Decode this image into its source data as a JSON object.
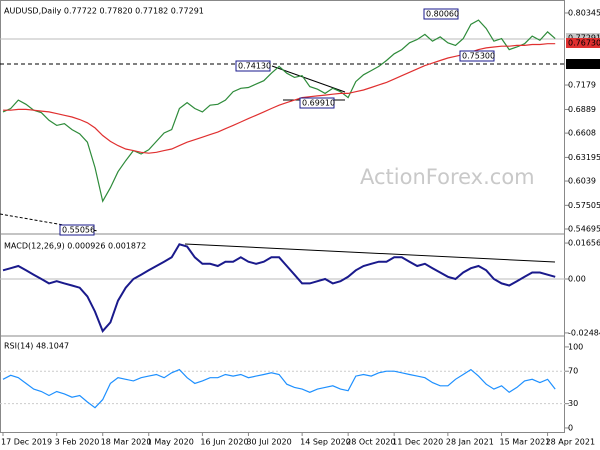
{
  "x_axis": {
    "ticks": [
      {
        "value": 0,
        "label": "17 Dec 2019"
      },
      {
        "value": 7,
        "label": "3 Feb 2020"
      },
      {
        "value": 13,
        "label": "18 Mar 2020"
      },
      {
        "value": 19,
        "label": "1 May 2020"
      },
      {
        "value": 26,
        "label": "16 Jun 2020"
      },
      {
        "value": 32,
        "label": "30 Jul 2020"
      },
      {
        "value": 39,
        "label": "14 Sep 2020"
      },
      {
        "value": 45,
        "label": "28 Oct 2020"
      },
      {
        "value": 51,
        "label": "11 Dec 2020"
      },
      {
        "value": 58,
        "label": "28 Jan 2021"
      },
      {
        "value": 65,
        "label": "15 Mar 2021"
      },
      {
        "value": 71,
        "label": "28 Apr 2021"
      }
    ]
  },
  "watermark": "ActionForex.com",
  "chart_data": [
    {
      "type": "line",
      "title": "AUDUSD,Daily  0.77722 0.77820 0.77182 0.77291",
      "ylim": [
        0.5434,
        0.8153
      ],
      "yticks": [
        0.80345,
        0.7179,
        0.6889,
        0.6608,
        0.63195,
        0.6039,
        0.57505,
        0.54695
      ],
      "series": [
        {
          "color": "#2e8b3a",
          "values": [
            0.686,
            0.69,
            0.7,
            0.695,
            0.688,
            0.685,
            0.676,
            0.67,
            0.672,
            0.665,
            0.66,
            0.65,
            0.62,
            0.58,
            0.596,
            0.615,
            0.628,
            0.64,
            0.636,
            0.641,
            0.651,
            0.661,
            0.665,
            0.69,
            0.697,
            0.69,
            0.686,
            0.694,
            0.695,
            0.7,
            0.71,
            0.714,
            0.715,
            0.719,
            0.723,
            0.732,
            0.74,
            0.732,
            0.727,
            0.729,
            0.716,
            0.713,
            0.708,
            0.714,
            0.71,
            0.703,
            0.722,
            0.73,
            0.735,
            0.74,
            0.747,
            0.755,
            0.76,
            0.768,
            0.772,
            0.778,
            0.77,
            0.775,
            0.768,
            0.765,
            0.773,
            0.79,
            0.795,
            0.785,
            0.77,
            0.773,
            0.76,
            0.763,
            0.767,
            0.776,
            0.771,
            0.781,
            0.773
          ]
        },
        {
          "color": "#e03030",
          "values": [
            0.688,
            0.688,
            0.689,
            0.689,
            0.688,
            0.687,
            0.686,
            0.684,
            0.682,
            0.68,
            0.677,
            0.673,
            0.667,
            0.658,
            0.651,
            0.646,
            0.642,
            0.64,
            0.638,
            0.637,
            0.638,
            0.64,
            0.642,
            0.646,
            0.65,
            0.653,
            0.656,
            0.659,
            0.662,
            0.666,
            0.67,
            0.674,
            0.678,
            0.682,
            0.686,
            0.69,
            0.694,
            0.697,
            0.7,
            0.703,
            0.704,
            0.705,
            0.706,
            0.707,
            0.708,
            0.708,
            0.71,
            0.712,
            0.715,
            0.718,
            0.721,
            0.725,
            0.729,
            0.733,
            0.737,
            0.741,
            0.744,
            0.747,
            0.75,
            0.752,
            0.754,
            0.757,
            0.76,
            0.762,
            0.763,
            0.764,
            0.764,
            0.765,
            0.765,
            0.766,
            0.766,
            0.767,
            0.767
          ]
        }
      ],
      "annotations": [
        "0.80060",
        "0.74130",
        "0.69910",
        "0.75300",
        "0.55056"
      ],
      "price_labels": [
        {
          "label": "0.77291",
          "color": "#c8c8c8"
        },
        {
          "label": "0.76730",
          "color": "#e03030"
        },
        {
          "label": "0.74130",
          "color": "#000000"
        }
      ]
    },
    {
      "type": "line",
      "title": "MACD(12,26,9) 0.000926 0.001872",
      "ylim": [
        -0.0258,
        0.0189
      ],
      "yticks": [
        {
          "value": 0.016567,
          "label": "0.016567"
        },
        {
          "value": 0,
          "label": "0.00"
        },
        {
          "value": -0.02484,
          "label": "-0.02484"
        }
      ],
      "series": [
        {
          "color": "#1a1a8c",
          "values": [
            0.004,
            0.005,
            0.006,
            0.004,
            0.002,
            0.0,
            -0.002,
            -0.001,
            -0.002,
            -0.003,
            -0.004,
            -0.008,
            -0.015,
            -0.024,
            -0.02,
            -0.01,
            -0.004,
            0.0,
            0.002,
            0.004,
            0.006,
            0.008,
            0.01,
            0.016,
            0.015,
            0.01,
            0.007,
            0.007,
            0.006,
            0.008,
            0.008,
            0.01,
            0.008,
            0.007,
            0.008,
            0.01,
            0.01,
            0.006,
            0.002,
            -0.002,
            -0.002,
            -0.001,
            0.0,
            -0.002,
            -0.001,
            0.001,
            0.004,
            0.006,
            0.007,
            0.008,
            0.008,
            0.01,
            0.01,
            0.008,
            0.006,
            0.007,
            0.005,
            0.003,
            0.001,
            0.0,
            0.003,
            0.005,
            0.006,
            0.004,
            0.0,
            -0.002,
            -0.003,
            -0.001,
            0.001,
            0.003,
            0.003,
            0.002,
            0.001
          ]
        }
      ]
    },
    {
      "type": "line",
      "title": "RSI(14) 48.1047",
      "ylim": [
        -5,
        111
      ],
      "yticks": [
        100,
        70,
        30,
        0
      ],
      "series": [
        {
          "color": "#1e90ff",
          "values": [
            60,
            65,
            62,
            55,
            48,
            45,
            40,
            45,
            42,
            38,
            40,
            32,
            25,
            35,
            55,
            62,
            60,
            58,
            62,
            64,
            66,
            62,
            68,
            72,
            62,
            55,
            58,
            62,
            62,
            66,
            64,
            66,
            62,
            64,
            66,
            68,
            66,
            54,
            50,
            48,
            44,
            48,
            50,
            52,
            48,
            46,
            64,
            66,
            64,
            68,
            70,
            70,
            68,
            66,
            64,
            62,
            56,
            52,
            52,
            60,
            66,
            72,
            64,
            54,
            48,
            52,
            44,
            50,
            58,
            60,
            56,
            60,
            48
          ]
        }
      ]
    }
  ]
}
